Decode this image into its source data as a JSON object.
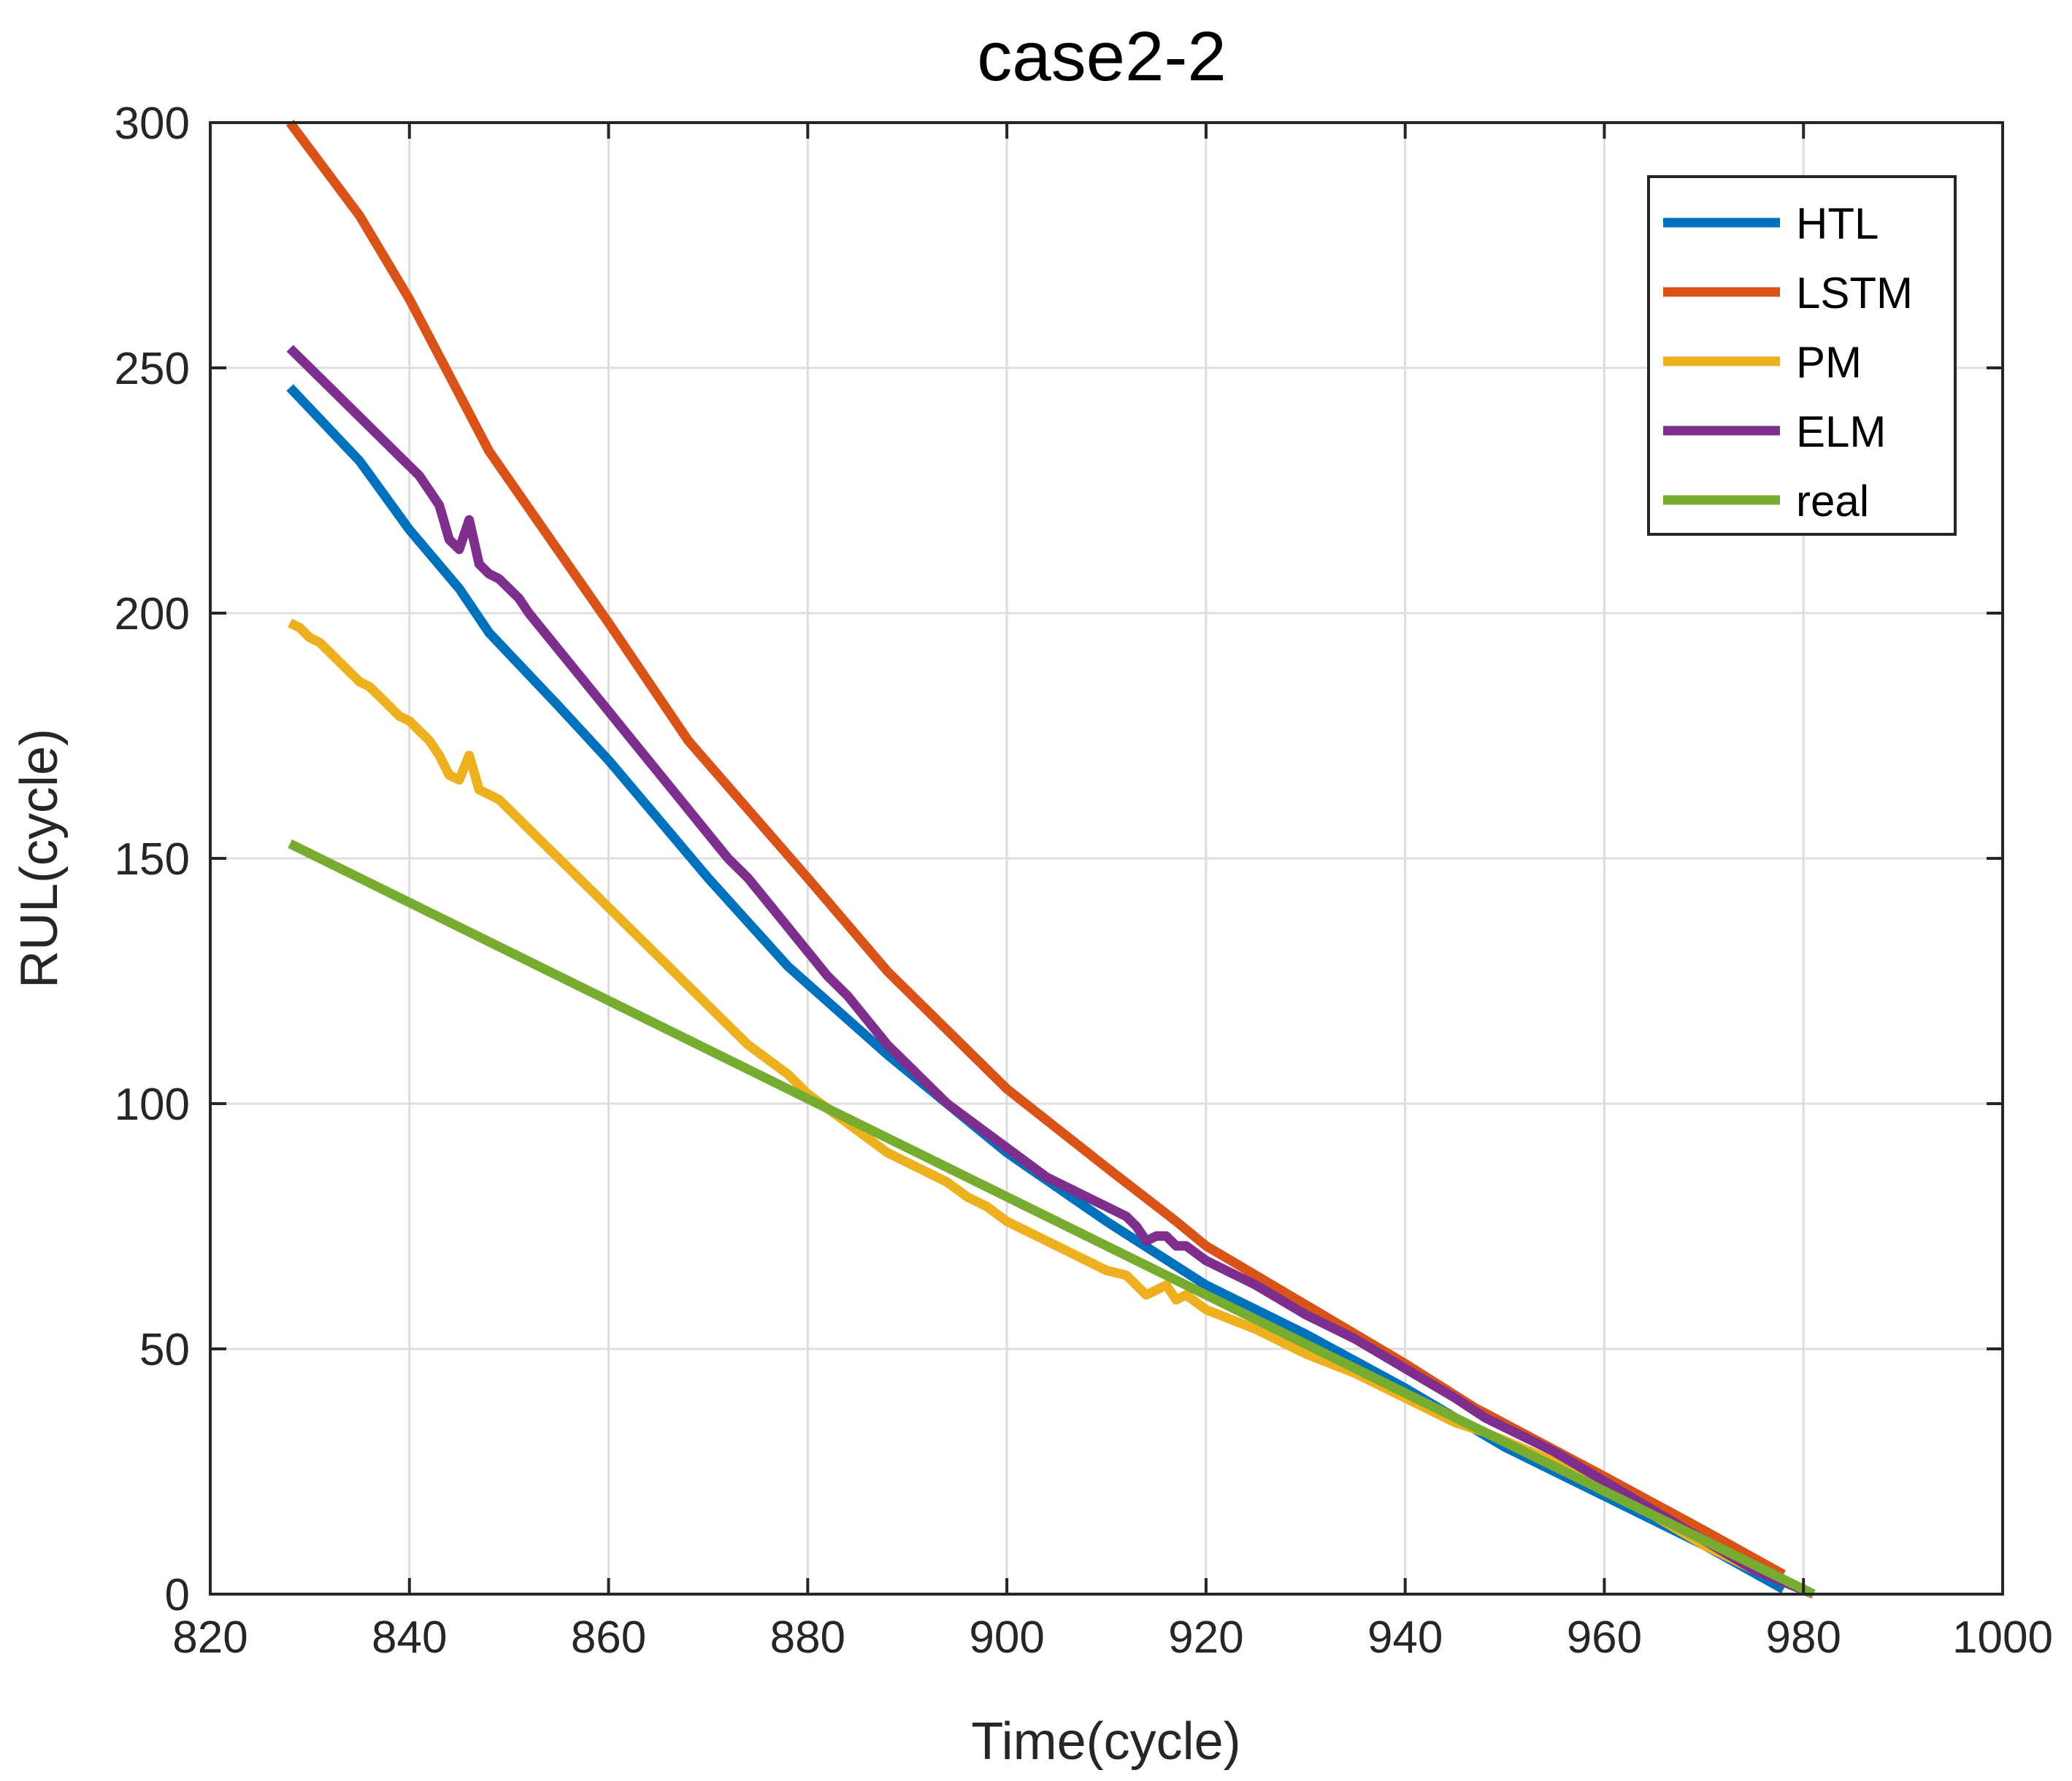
{
  "chart_data": {
    "type": "line",
    "title": "case2-2",
    "xlabel": "Time(cycle)",
    "ylabel": "RUL(cycle)",
    "xlim": [
      820,
      1000
    ],
    "ylim": [
      0,
      300
    ],
    "xticks": [
      820,
      840,
      860,
      880,
      900,
      920,
      940,
      960,
      980,
      1000
    ],
    "yticks": [
      0,
      50,
      100,
      150,
      200,
      250,
      300
    ],
    "grid": true,
    "legend_position": "top-right",
    "series": [
      {
        "name": "HTL",
        "color": "#0072BD",
        "points": [
          [
            828,
            246
          ],
          [
            835,
            231
          ],
          [
            840,
            217
          ],
          [
            845,
            205
          ],
          [
            848,
            196
          ],
          [
            855,
            181
          ],
          [
            860,
            170
          ],
          [
            865,
            158
          ],
          [
            870,
            146
          ],
          [
            878,
            128
          ],
          [
            888,
            110
          ],
          [
            900,
            90
          ],
          [
            910,
            76
          ],
          [
            920,
            63
          ],
          [
            930,
            53
          ],
          [
            940,
            42
          ],
          [
            945,
            36
          ],
          [
            950,
            30
          ],
          [
            960,
            20
          ],
          [
            970,
            10
          ],
          [
            978,
            1
          ]
        ]
      },
      {
        "name": "LSTM",
        "color": "#D95319",
        "points": [
          [
            828,
            300
          ],
          [
            835,
            281
          ],
          [
            840,
            264
          ],
          [
            848,
            233
          ],
          [
            860,
            198
          ],
          [
            868,
            174
          ],
          [
            880,
            146
          ],
          [
            888,
            127
          ],
          [
            900,
            103
          ],
          [
            910,
            87
          ],
          [
            917,
            76
          ],
          [
            920,
            71
          ],
          [
            930,
            59
          ],
          [
            940,
            47
          ],
          [
            947,
            38
          ],
          [
            960,
            24
          ],
          [
            970,
            13
          ],
          [
            978,
            4
          ]
        ]
      },
      {
        "name": "PM",
        "color": "#EDB120",
        "points": [
          [
            828,
            198
          ],
          [
            829,
            197
          ],
          [
            830,
            195
          ],
          [
            831,
            194
          ],
          [
            832,
            192
          ],
          [
            833,
            190
          ],
          [
            834,
            188
          ],
          [
            835,
            186
          ],
          [
            836,
            185
          ],
          [
            837,
            183
          ],
          [
            838,
            181
          ],
          [
            839,
            179
          ],
          [
            840,
            178
          ],
          [
            841,
            176
          ],
          [
            842,
            174
          ],
          [
            843,
            171
          ],
          [
            844,
            167
          ],
          [
            845,
            166
          ],
          [
            846,
            171
          ],
          [
            847,
            164
          ],
          [
            848,
            163
          ],
          [
            849,
            162
          ],
          [
            850,
            160
          ],
          [
            851,
            158
          ],
          [
            852,
            156
          ],
          [
            854,
            152
          ],
          [
            856,
            148
          ],
          [
            858,
            144
          ],
          [
            860,
            140
          ],
          [
            862,
            136
          ],
          [
            864,
            132
          ],
          [
            866,
            128
          ],
          [
            868,
            124
          ],
          [
            870,
            120
          ],
          [
            872,
            116
          ],
          [
            874,
            112
          ],
          [
            876,
            109
          ],
          [
            878,
            106
          ],
          [
            880,
            102
          ],
          [
            882,
            99
          ],
          [
            884,
            96
          ],
          [
            886,
            93
          ],
          [
            888,
            90
          ],
          [
            890,
            88
          ],
          [
            892,
            86
          ],
          [
            894,
            84
          ],
          [
            896,
            81
          ],
          [
            898,
            79
          ],
          [
            900,
            76
          ],
          [
            902,
            74
          ],
          [
            904,
            72
          ],
          [
            906,
            70
          ],
          [
            908,
            68
          ],
          [
            910,
            66
          ],
          [
            912,
            65
          ],
          [
            913,
            63
          ],
          [
            914,
            61
          ],
          [
            915,
            62
          ],
          [
            916,
            63
          ],
          [
            917,
            60
          ],
          [
            918,
            61
          ],
          [
            920,
            58
          ],
          [
            925,
            54
          ],
          [
            930,
            49
          ],
          [
            935,
            45
          ],
          [
            940,
            40
          ],
          [
            945,
            35
          ],
          [
            948,
            33
          ],
          [
            955,
            27
          ],
          [
            960,
            21
          ],
          [
            965,
            16
          ],
          [
            970,
            10
          ],
          [
            975,
            5
          ],
          [
            981,
            0
          ]
        ]
      },
      {
        "name": "ELM",
        "color": "#7E2F8E",
        "points": [
          [
            828,
            254
          ],
          [
            829,
            252
          ],
          [
            830,
            250
          ],
          [
            831,
            248
          ],
          [
            832,
            246
          ],
          [
            833,
            244
          ],
          [
            834,
            242
          ],
          [
            835,
            240
          ],
          [
            836,
            238
          ],
          [
            837,
            236
          ],
          [
            838,
            234
          ],
          [
            839,
            232
          ],
          [
            840,
            230
          ],
          [
            841,
            228
          ],
          [
            842,
            225
          ],
          [
            843,
            222
          ],
          [
            844,
            215
          ],
          [
            845,
            213
          ],
          [
            846,
            219
          ],
          [
            847,
            210
          ],
          [
            848,
            208
          ],
          [
            849,
            207
          ],
          [
            850,
            205
          ],
          [
            851,
            203
          ],
          [
            852,
            200
          ],
          [
            854,
            195
          ],
          [
            856,
            190
          ],
          [
            858,
            185
          ],
          [
            860,
            180
          ],
          [
            862,
            175
          ],
          [
            864,
            170
          ],
          [
            866,
            165
          ],
          [
            868,
            160
          ],
          [
            870,
            155
          ],
          [
            872,
            150
          ],
          [
            874,
            146
          ],
          [
            876,
            141
          ],
          [
            878,
            136
          ],
          [
            880,
            131
          ],
          [
            882,
            126
          ],
          [
            884,
            122
          ],
          [
            886,
            117
          ],
          [
            888,
            112
          ],
          [
            890,
            108
          ],
          [
            892,
            104
          ],
          [
            894,
            100
          ],
          [
            896,
            97
          ],
          [
            898,
            94
          ],
          [
            900,
            91
          ],
          [
            902,
            88
          ],
          [
            904,
            85
          ],
          [
            906,
            83
          ],
          [
            908,
            81
          ],
          [
            910,
            79
          ],
          [
            912,
            77
          ],
          [
            913,
            75
          ],
          [
            914,
            72
          ],
          [
            915,
            73
          ],
          [
            916,
            73
          ],
          [
            917,
            71
          ],
          [
            918,
            71
          ],
          [
            920,
            68
          ],
          [
            925,
            63
          ],
          [
            930,
            57
          ],
          [
            935,
            52
          ],
          [
            940,
            46
          ],
          [
            945,
            40
          ],
          [
            948,
            36
          ],
          [
            955,
            29
          ],
          [
            960,
            23
          ],
          [
            965,
            17
          ],
          [
            970,
            11
          ],
          [
            975,
            5
          ],
          [
            981,
            0
          ]
        ]
      },
      {
        "name": "real",
        "color": "#77AC30",
        "points": [
          [
            828,
            153
          ],
          [
            981,
            0
          ]
        ]
      }
    ]
  }
}
